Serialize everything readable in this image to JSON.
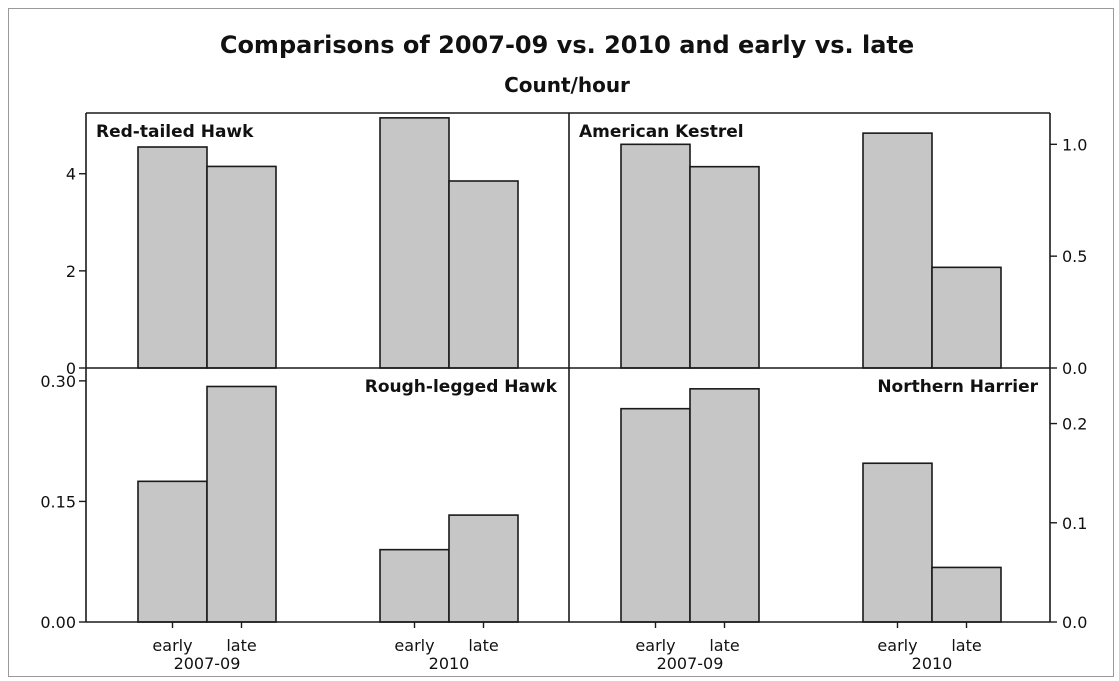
{
  "chart_data": {
    "type": "bar",
    "title": "Comparisons of 2007-09 vs. 2010 and early vs. late",
    "subtitle": "Count/hour",
    "groups": [
      "2007-09",
      "2010"
    ],
    "categories": [
      "early",
      "late"
    ],
    "grid": false,
    "legend": "none",
    "bar_color": "#c6c6c6",
    "panels": [
      {
        "name": "Red-tailed Hawk",
        "label_position": "top-left",
        "y_axis_side": "left",
        "ylim": [
          0,
          5.25
        ],
        "yticks": [
          0,
          2,
          4
        ],
        "ytick_labels": [
          "0",
          "2",
          "4"
        ],
        "values": {
          "2007-09": [
            4.55,
            4.15
          ],
          "2010": [
            5.15,
            3.85
          ]
        }
      },
      {
        "name": "American Kestrel",
        "label_position": "top-left",
        "y_axis_side": "right",
        "ylim": [
          0,
          1.14
        ],
        "yticks": [
          0,
          0.5,
          1.0
        ],
        "ytick_labels": [
          "0.0",
          "0.5",
          "1.0"
        ],
        "values": {
          "2007-09": [
            1.0,
            0.9
          ],
          "2010": [
            1.05,
            0.45
          ]
        }
      },
      {
        "name": "Rough-legged Hawk",
        "label_position": "top-right",
        "y_axis_side": "left",
        "ylim": [
          0,
          0.316
        ],
        "yticks": [
          0,
          0.15,
          0.3
        ],
        "ytick_labels": [
          "0.00",
          "0.15",
          "0.30"
        ],
        "values": {
          "2007-09": [
            0.175,
            0.293
          ],
          "2010": [
            0.09,
            0.133
          ]
        }
      },
      {
        "name": "Northern Harrier",
        "label_position": "top-right",
        "y_axis_side": "right",
        "ylim": [
          0,
          0.256
        ],
        "yticks": [
          0,
          0.1,
          0.2
        ],
        "ytick_labels": [
          "0.0",
          "0.1",
          "0.2"
        ],
        "values": {
          "2007-09": [
            0.215,
            0.235
          ],
          "2010": [
            0.16,
            0.055
          ]
        }
      }
    ]
  }
}
